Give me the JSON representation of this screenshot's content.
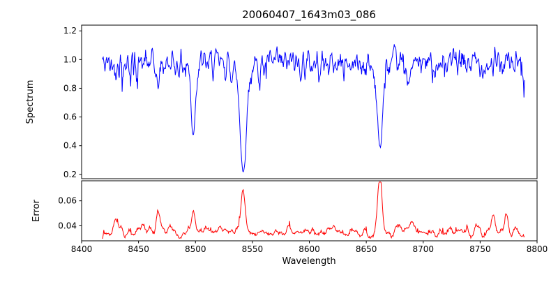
{
  "figure": {
    "background": "#ffffff",
    "axis_color": "#000000"
  },
  "chart_data": {
    "type": "line",
    "title": "20060407_1643m03_086",
    "xlabel": "Wavelength",
    "grid": false,
    "legend": null,
    "xlim": [
      8400,
      8800
    ],
    "x_data_range": [
      8418,
      8789
    ],
    "x_ticks": {
      "values": [
        8400,
        8450,
        8500,
        8550,
        8600,
        8650,
        8700,
        8750,
        8800
      ],
      "labels": [
        "8400",
        "8450",
        "8500",
        "8550",
        "8600",
        "8650",
        "8700",
        "8750",
        "8800"
      ]
    },
    "subplots": [
      {
        "name": "spectrum",
        "ylabel": "Spectrum",
        "ylim": [
          0.17,
          1.24
        ],
        "y_ticks": {
          "values": [
            0.2,
            0.4,
            0.6,
            0.8,
            1.0,
            1.2
          ],
          "labels": [
            "0.2",
            "0.4",
            "0.6",
            "0.8",
            "1.0",
            "1.2"
          ]
        },
        "line_color": "#0000ff",
        "continuum_level": 0.97,
        "noise_sigma": 0.05,
        "absorption_lines": [
          {
            "center": 8467,
            "depth": 0.18,
            "width": 1.2
          },
          {
            "center": 8498,
            "depth": 0.5,
            "width": 1.8
          },
          {
            "center": 8542,
            "depth": 0.72,
            "width": 2.6,
            "wing_depth": 0.06,
            "wing_width": 9
          },
          {
            "center": 8662,
            "depth": 0.56,
            "width": 2.2,
            "wing_depth": 0.05,
            "wing_width": 6
          },
          {
            "center": 8688,
            "depth": 0.15,
            "width": 1.3
          }
        ],
        "seed": 42
      },
      {
        "name": "error",
        "ylabel": "Error",
        "ylim": [
          0.028,
          0.076
        ],
        "y_ticks": {
          "values": [
            0.04,
            0.06
          ],
          "labels": [
            "0.04",
            "0.06"
          ]
        },
        "line_color": "#ff0000",
        "baseline_level": 0.034,
        "noise_sigma": 0.0015,
        "peaks": [
          {
            "center": 8430,
            "height": 0.013,
            "width": 1.5
          },
          {
            "center": 8467,
            "height": 0.016,
            "width": 1.4
          },
          {
            "center": 8498,
            "height": 0.017,
            "width": 1.4
          },
          {
            "center": 8542,
            "height": 0.033,
            "width": 1.8
          },
          {
            "center": 8662,
            "height": 0.04,
            "width": 1.8
          },
          {
            "center": 8690,
            "height": 0.007,
            "width": 1.5
          },
          {
            "center": 8762,
            "height": 0.011,
            "width": 2.0
          },
          {
            "center": 8773,
            "height": 0.013,
            "width": 1.6
          }
        ],
        "seed": 7
      }
    ]
  }
}
